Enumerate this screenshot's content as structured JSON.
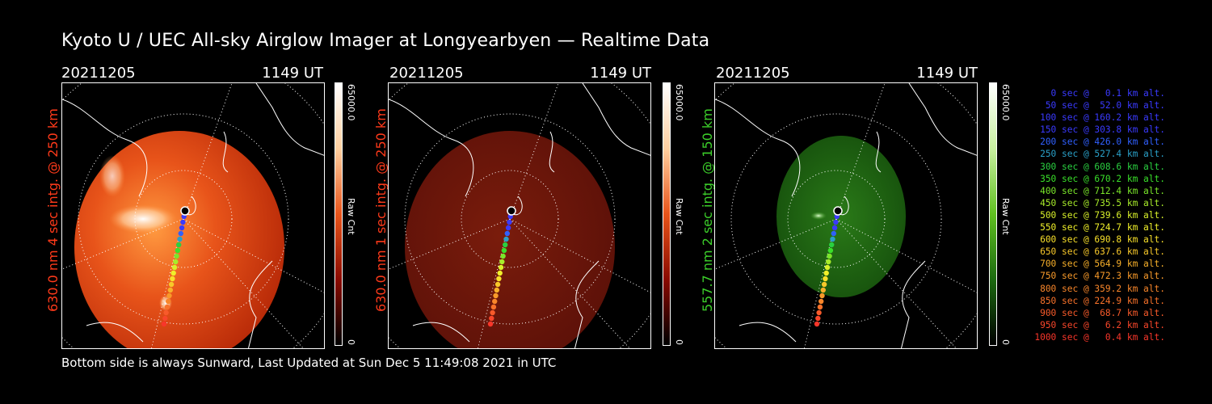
{
  "header": {
    "title": "Kyoto U / UEC All-sky Airglow Imager at Longyearbyen — Realtime Data"
  },
  "panels": [
    {
      "date": "20211205",
      "time": "1149 UT",
      "side_label": "630.0 nm 4 sec intg. @ 250 km",
      "label_color": "#ff3a1a",
      "cbar_max": "65000.0",
      "cbar_min": "0",
      "cbar_unit": "Raw Cnt",
      "scheme": "red"
    },
    {
      "date": "20211205",
      "time": "1149 UT",
      "side_label": "630.0 nm 1 sec intg. @ 250 km",
      "label_color": "#ff3a1a",
      "cbar_max": "65000.0",
      "cbar_min": "0",
      "cbar_unit": "Raw Cnt",
      "scheme": "darkred"
    },
    {
      "date": "20211205",
      "time": "1149 UT",
      "side_label": "557.7 nm 2 sec intg. @ 150 km",
      "label_color": "#3ccf2a",
      "cbar_max": "65000.0",
      "cbar_min": "0",
      "cbar_unit": "Raw Cnt",
      "scheme": "green"
    }
  ],
  "legend": [
    {
      "text": "0 sec @   0.1 km alt.",
      "color": "#3a3aff"
    },
    {
      "text": "50 sec @  52.0 km alt.",
      "color": "#3a3aff"
    },
    {
      "text": "100 sec @ 160.2 km alt.",
      "color": "#3a3aff"
    },
    {
      "text": "150 sec @ 303.8 km alt.",
      "color": "#3a3aff"
    },
    {
      "text": "200 sec @ 426.0 km alt.",
      "color": "#3060ff"
    },
    {
      "text": "250 sec @ 527.4 km alt.",
      "color": "#2aa0c8"
    },
    {
      "text": "300 sec @ 608.6 km alt.",
      "color": "#2ad040"
    },
    {
      "text": "350 sec @ 670.2 km alt.",
      "color": "#3ae02a"
    },
    {
      "text": "400 sec @ 712.4 km alt.",
      "color": "#7ae62a"
    },
    {
      "text": "450 sec @ 735.5 km alt.",
      "color": "#a8ec2a"
    },
    {
      "text": "500 sec @ 739.6 km alt.",
      "color": "#d8f02a"
    },
    {
      "text": "550 sec @ 724.7 km alt.",
      "color": "#f0f02a"
    },
    {
      "text": "600 sec @ 690.8 km alt.",
      "color": "#f8e02a"
    },
    {
      "text": "650 sec @ 637.6 km alt.",
      "color": "#f8c82a"
    },
    {
      "text": "700 sec @ 564.9 km alt.",
      "color": "#f8b02a"
    },
    {
      "text": "750 sec @ 472.3 km alt.",
      "color": "#f89a2a"
    },
    {
      "text": "800 sec @ 359.2 km alt.",
      "color": "#f8862a"
    },
    {
      "text": "850 sec @ 224.9 km alt.",
      "color": "#f8722a"
    },
    {
      "text": "900 sec @  68.7 km alt.",
      "color": "#f85a2a"
    },
    {
      "text": "950 sec @   6.2 km alt.",
      "color": "#f8462a"
    },
    {
      "text": "1000 sec @   0.4 km alt.",
      "color": "#f8362a"
    }
  ],
  "footer": {
    "text": "Bottom side is always Sunward, Last Updated at Sun Dec  5 11:49:08 2021 in UTC"
  },
  "colors": {
    "red_scheme_bright": "#ffffff",
    "red_scheme_mid": "#e8541a",
    "red_scheme_dark": "#8a0a00",
    "green_scheme": "#1c6a10",
    "grid": "#ffffff"
  }
}
